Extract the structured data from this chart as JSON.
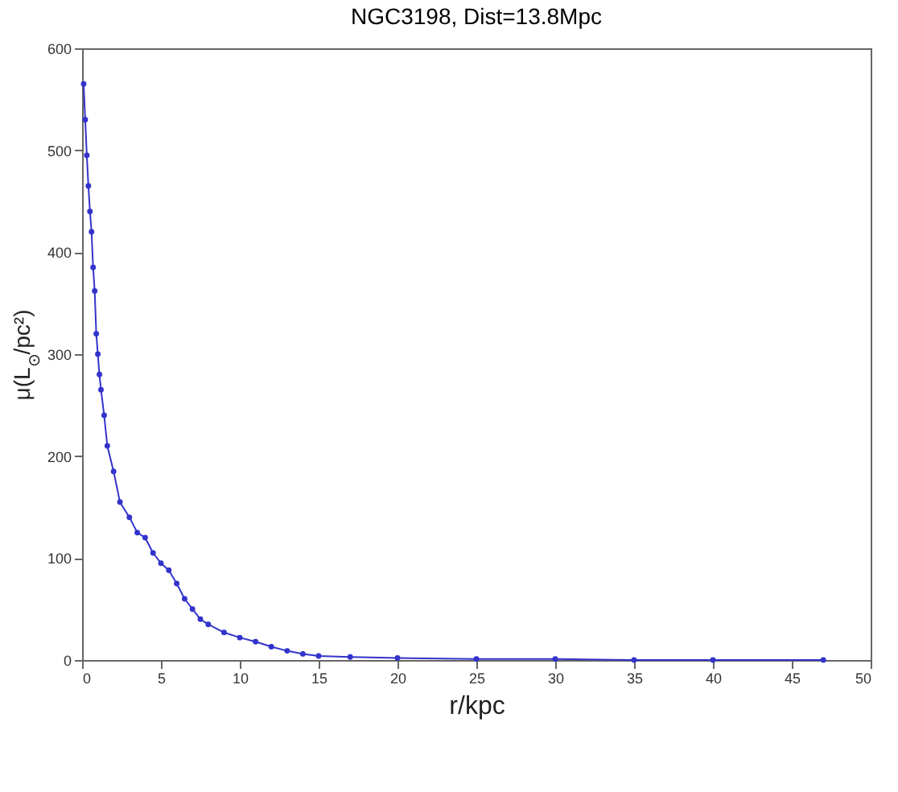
{
  "chart_data": {
    "type": "line",
    "title": "NGC3198, Dist=13.8Mpc",
    "xlabel": "r/kpc",
    "ylabel": "μ(L$_{⊙}$/pc²)",
    "x": [
      0.1,
      0.2,
      0.3,
      0.4,
      0.5,
      0.6,
      0.7,
      0.8,
      0.9,
      1.0,
      1.1,
      1.2,
      1.4,
      1.6,
      2.0,
      2.4,
      3.0,
      3.5,
      4.0,
      4.5,
      5.0,
      5.5,
      6.0,
      6.5,
      7.0,
      7.5,
      8.0,
      9.0,
      10,
      11,
      12,
      13,
      14,
      15,
      17,
      20,
      25,
      30,
      35,
      40,
      47
    ],
    "series": [
      {
        "color": "#3333cc",
        "values": [
          565,
          530,
          495,
          465,
          440,
          420,
          385,
          362,
          320,
          300,
          280,
          265,
          240,
          210,
          185,
          155,
          140,
          125,
          120,
          105,
          95,
          88,
          75,
          60,
          50,
          40,
          35,
          27,
          22,
          18,
          13,
          9,
          6,
          4,
          3,
          2,
          1,
          1,
          0,
          0,
          0
        ]
      }
    ],
    "xlim": [
      0,
      50
    ],
    "ylim": [
      0,
      600
    ],
    "xticks": [
      0,
      5,
      10,
      15,
      20,
      25,
      30,
      35,
      40,
      45,
      50
    ],
    "yticks": [
      0,
      100,
      200,
      300,
      400,
      500,
      600
    ],
    "grid": false,
    "legend": false,
    "marker": "circle",
    "line_style": "solid"
  }
}
